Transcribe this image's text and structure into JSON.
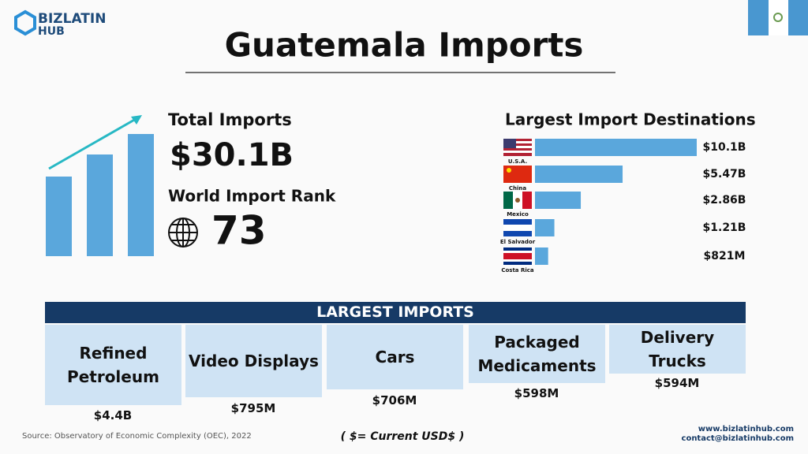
{
  "logo": {
    "line1": "BIZLATIN",
    "line2": "HUB"
  },
  "title": "Guatemala Imports",
  "total_imports": {
    "label": "Total Imports",
    "value": "$30.1B"
  },
  "world_rank": {
    "label": "World Import Rank",
    "value": "73"
  },
  "destinations": {
    "title": "Largest Import Destinations",
    "countries": [
      "U.S.A.",
      "China",
      "Mexico",
      "El Salvador",
      "Costa Rica"
    ],
    "values": [
      10.1,
      5.47,
      2.86,
      1.21,
      0.821
    ],
    "value_labels": [
      "$10.1B",
      "$5.47B",
      "$2.86B",
      "$1.21B",
      "$821M"
    ]
  },
  "largest_imports": {
    "title": "LARGEST IMPORTS",
    "items": [
      {
        "name": "Refined Petroleum",
        "value": "$4.4B"
      },
      {
        "name": "Video Displays",
        "value": "$795M"
      },
      {
        "name": "Cars",
        "value": "$706M"
      },
      {
        "name": "Packaged Medicaments",
        "value": "$598M"
      },
      {
        "name": "Delivery Trucks",
        "value": "$594M"
      }
    ]
  },
  "currency_note": "( $= Current USD$ )",
  "source": "Source: Observatory of Economic Complexity (OEC), 2022",
  "website": "www.bizlatinhub.com",
  "contact": "contact@bizlatinhub.com"
}
